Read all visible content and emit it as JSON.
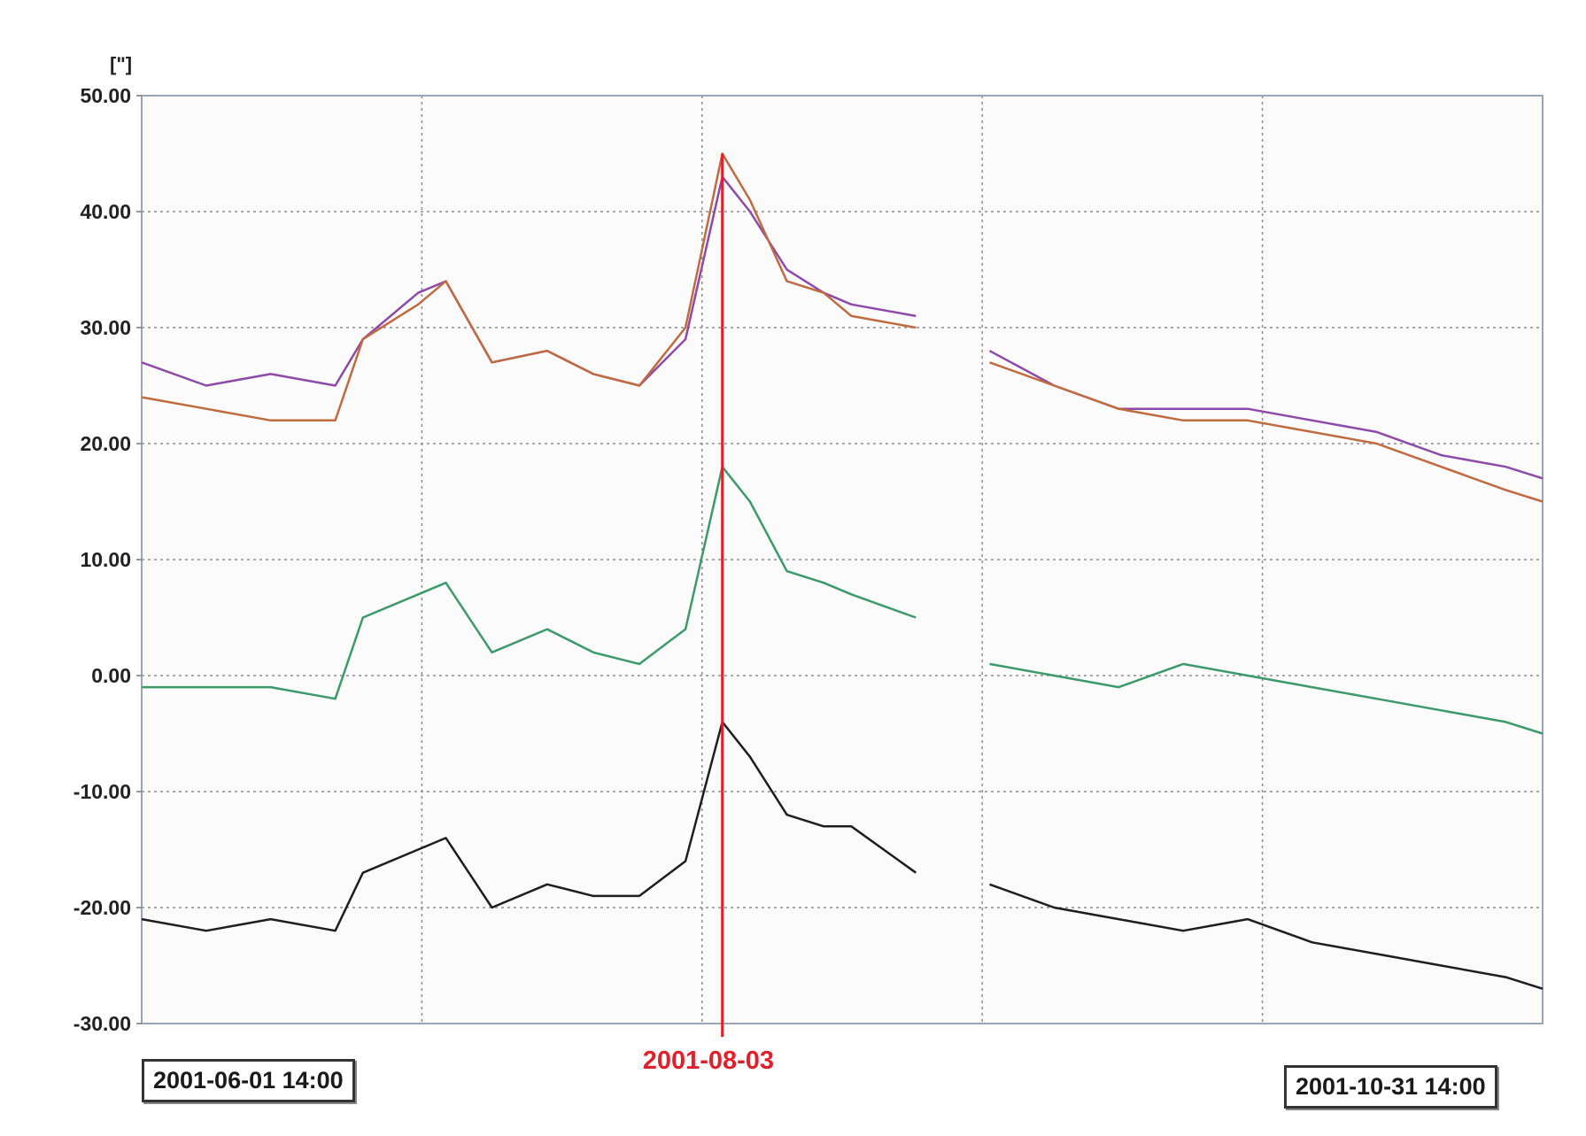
{
  "chart_data": {
    "type": "line",
    "unit": "[\"]",
    "xlim": [
      "2001-06-01 14:00",
      "2001-10-31 14:00"
    ],
    "ylim": [
      -30,
      50
    ],
    "yticks": [
      50,
      40,
      30,
      20,
      10,
      0,
      -10,
      -20,
      -30
    ],
    "ytick_labels": [
      "50.00",
      "40.00",
      "30.00",
      "20.00",
      "10.00",
      "0.00",
      "-10.00",
      "-20.00",
      "-30.00"
    ],
    "grid": true,
    "gap": [
      "2001-08-24 14:00",
      "2001-08-31 14:00"
    ],
    "start_label": "2001-06-01 14:00",
    "end_label": "2001-10-31 14:00",
    "marker": {
      "date": "2001-08-03",
      "label": "2001-08-03",
      "color": "#e0202a"
    },
    "series": [
      {
        "color": "#8e4aa8",
        "x": [
          "2001-06-01",
          "2001-06-08",
          "2001-06-15",
          "2001-06-22",
          "2001-06-25",
          "2001-07-01",
          "2001-07-04",
          "2001-07-09",
          "2001-07-15",
          "2001-07-20",
          "2001-07-25",
          "2001-07-30",
          "2001-08-03",
          "2001-08-06",
          "2001-08-10",
          "2001-08-14",
          "2001-08-17",
          "2001-08-24",
          "2001-09-01",
          "2001-09-08",
          "2001-09-15",
          "2001-09-22",
          "2001-09-29",
          "2001-10-06",
          "2001-10-13",
          "2001-10-20",
          "2001-10-27",
          "2001-10-31"
        ],
        "y": [
          27,
          25,
          26,
          25,
          29,
          33,
          34,
          27,
          28,
          26,
          25,
          29,
          43,
          40,
          35,
          33,
          32,
          31,
          28,
          25,
          23,
          23,
          23,
          22,
          21,
          19,
          18,
          17
        ]
      },
      {
        "color": "#c06a40",
        "x": [
          "2001-06-01",
          "2001-06-08",
          "2001-06-15",
          "2001-06-22",
          "2001-06-25",
          "2001-07-01",
          "2001-07-04",
          "2001-07-09",
          "2001-07-15",
          "2001-07-20",
          "2001-07-25",
          "2001-07-30",
          "2001-08-03",
          "2001-08-06",
          "2001-08-10",
          "2001-08-14",
          "2001-08-17",
          "2001-08-24",
          "2001-09-01",
          "2001-09-08",
          "2001-09-15",
          "2001-09-22",
          "2001-09-29",
          "2001-10-06",
          "2001-10-13",
          "2001-10-20",
          "2001-10-27",
          "2001-10-31"
        ],
        "y": [
          24,
          23,
          22,
          22,
          29,
          32,
          34,
          27,
          28,
          26,
          25,
          30,
          45,
          41,
          34,
          33,
          31,
          30,
          27,
          25,
          23,
          22,
          22,
          21,
          20,
          18,
          16,
          15
        ]
      },
      {
        "color": "#3c9a6a",
        "x": [
          "2001-06-01",
          "2001-06-08",
          "2001-06-15",
          "2001-06-22",
          "2001-06-25",
          "2001-07-01",
          "2001-07-04",
          "2001-07-09",
          "2001-07-15",
          "2001-07-20",
          "2001-07-25",
          "2001-07-30",
          "2001-08-03",
          "2001-08-06",
          "2001-08-10",
          "2001-08-14",
          "2001-08-17",
          "2001-08-24",
          "2001-09-01",
          "2001-09-08",
          "2001-09-15",
          "2001-09-22",
          "2001-09-29",
          "2001-10-06",
          "2001-10-13",
          "2001-10-20",
          "2001-10-27",
          "2001-10-31"
        ],
        "y": [
          -1,
          -1,
          -1,
          -2,
          5,
          7,
          8,
          2,
          4,
          2,
          1,
          4,
          18,
          15,
          9,
          8,
          7,
          5,
          1,
          0,
          -1,
          1,
          0,
          -1,
          -2,
          -3,
          -4,
          -5
        ]
      },
      {
        "color": "#1e1e1e",
        "x": [
          "2001-06-01",
          "2001-06-08",
          "2001-06-15",
          "2001-06-22",
          "2001-06-25",
          "2001-07-01",
          "2001-07-04",
          "2001-07-09",
          "2001-07-15",
          "2001-07-20",
          "2001-07-25",
          "2001-07-30",
          "2001-08-03",
          "2001-08-06",
          "2001-08-10",
          "2001-08-14",
          "2001-08-17",
          "2001-08-24",
          "2001-09-01",
          "2001-09-08",
          "2001-09-15",
          "2001-09-22",
          "2001-09-29",
          "2001-10-06",
          "2001-10-13",
          "2001-10-20",
          "2001-10-27",
          "2001-10-31"
        ],
        "y": [
          -21,
          -22,
          -21,
          -22,
          -17,
          -15,
          -14,
          -20,
          -18,
          -19,
          -19,
          -16,
          -4,
          -7,
          -12,
          -13,
          -13,
          -17,
          -18,
          -20,
          -21,
          -22,
          -21,
          -23,
          -24,
          -25,
          -26,
          -27
        ]
      }
    ]
  }
}
